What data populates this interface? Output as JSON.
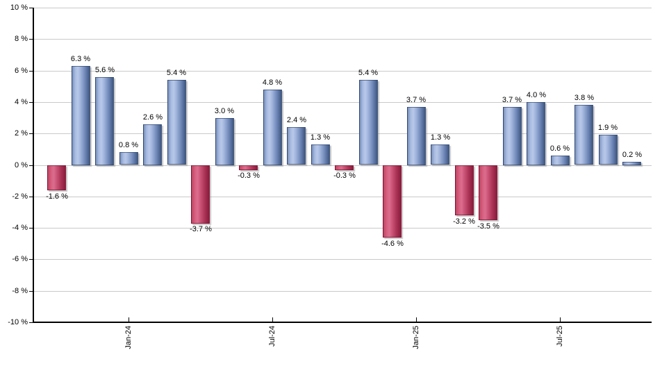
{
  "chart_data": {
    "type": "bar",
    "title": "",
    "xlabel": "",
    "ylabel": "",
    "ylim": [
      -10,
      10
    ],
    "y_tick_step": 2,
    "grid": true,
    "legend": "none",
    "background_color": "#ffffff",
    "grid_color": "#c9c9c9",
    "axis_color": "#000000",
    "text_color": "#000000",
    "bar_color_positive": "#8fa5ce",
    "bar_color_negative": "#c14668",
    "values": [
      -1.6,
      6.3,
      5.6,
      0.8,
      2.6,
      5.4,
      -3.7,
      3.0,
      -0.3,
      4.8,
      2.4,
      1.3,
      -0.3,
      5.4,
      -4.6,
      3.7,
      1.3,
      -3.2,
      -3.5,
      3.7,
      4.0,
      0.6,
      3.8,
      1.9,
      0.2
    ],
    "bar_labels": [
      "-1.6 %",
      "6.3 %",
      "5.6 %",
      "0.8 %",
      "2.6 %",
      "5.4 %",
      "-3.7 %",
      "3.0 %",
      "-0.3 %",
      "4.8 %",
      "2.4 %",
      "1.3 %",
      "-0.3 %",
      "5.4 %",
      "-4.6 %",
      "3.7 %",
      "1.3 %",
      "-3.2 %",
      "-3.5 %",
      "3.7 %",
      "4.0 %",
      "0.6 %",
      "3.8 %",
      "1.9 %",
      "0.2 %"
    ],
    "y_ticks": [
      {
        "label": "10 %",
        "value": 10
      },
      {
        "label": "8 %",
        "value": 8
      },
      {
        "label": "6 %",
        "value": 6
      },
      {
        "label": "4 %",
        "value": 4
      },
      {
        "label": "2 %",
        "value": 2
      },
      {
        "label": "0 %",
        "value": 0
      },
      {
        "label": "-2 %",
        "value": -2
      },
      {
        "label": "-4 %",
        "value": -4
      },
      {
        "label": "-6 %",
        "value": -6
      },
      {
        "label": "-8 %",
        "value": -8
      },
      {
        "label": "-10 %",
        "value": -10
      }
    ],
    "x_ticks": [
      {
        "label": "Jan-24",
        "bar_index": 3
      },
      {
        "label": "Jul-24",
        "bar_index": 9
      },
      {
        "label": "Jan-25",
        "bar_index": 15
      },
      {
        "label": "Jul-25",
        "bar_index": 21
      }
    ]
  }
}
